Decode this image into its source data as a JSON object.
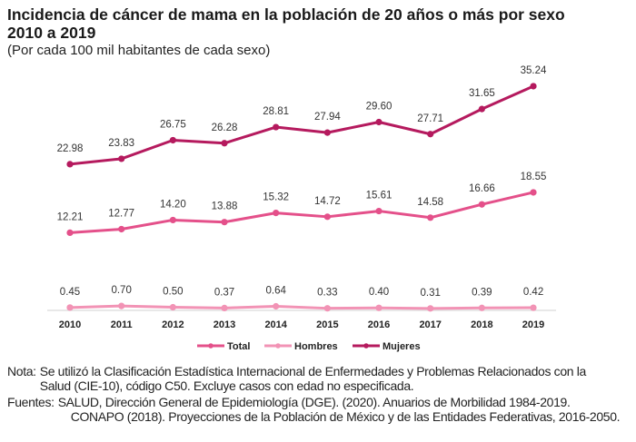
{
  "chart_data": {
    "type": "line",
    "title": "Incidencia de cáncer de mama en la población de 20 años o más por sexo 2010 a 2019",
    "title_lines": [
      "Incidencia de cáncer de mama en la población de 20 años o más por sexo",
      "2010 a 2019"
    ],
    "subtitle": "(Por cada 100 mil habitantes de cada sexo)",
    "xlabel": "",
    "ylabel": "",
    "categories": [
      "2010",
      "2011",
      "2012",
      "2013",
      "2014",
      "2015",
      "2016",
      "2017",
      "2018",
      "2019"
    ],
    "series": [
      {
        "name": "Total",
        "color": "#e4508a",
        "values": [
          12.21,
          12.77,
          14.2,
          13.88,
          15.32,
          14.72,
          15.61,
          14.58,
          16.66,
          18.55
        ]
      },
      {
        "name": "Hombres",
        "color": "#f293b5",
        "values": [
          0.45,
          0.7,
          0.5,
          0.37,
          0.64,
          0.33,
          0.4,
          0.31,
          0.39,
          0.42
        ]
      },
      {
        "name": "Mujeres",
        "color": "#b51a5e",
        "values": [
          22.98,
          23.83,
          26.75,
          26.28,
          28.81,
          27.94,
          29.6,
          27.71,
          31.65,
          35.24
        ]
      }
    ],
    "value_labels": true,
    "grid": false,
    "legend_position": "bottom"
  },
  "notes": {
    "nota_label": "Nota:",
    "nota_text": "Se utilizó la Clasificación Estadística Internacional de Enfermedades y Problemas Relacionados con la Salud (CIE-10), código C50. Excluye casos con edad no especificada.",
    "fuentes_label": "Fuentes:",
    "fuentes_lines": [
      "SALUD, Dirección General de Epidemiología (DGE). (2020). Anuarios de Morbilidad 1984-2019.",
      "CONAPO (2018). Proyecciones de la Población de México y de las Entidades Federativas, 2016-2050."
    ]
  }
}
